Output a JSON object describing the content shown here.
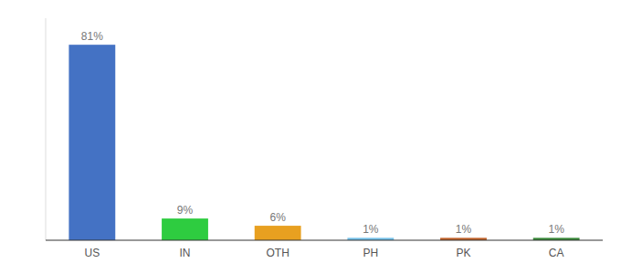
{
  "chart_data": {
    "type": "bar",
    "categories": [
      "US",
      "IN",
      "OTH",
      "PH",
      "PK",
      "CA"
    ],
    "values": [
      81,
      9,
      6,
      1,
      1,
      1
    ],
    "value_labels": [
      "81%",
      "9%",
      "6%",
      "1%",
      "1%",
      "1%"
    ],
    "colors": [
      "#4472c4",
      "#2ecc40",
      "#e8a020",
      "#74c0e8",
      "#c0622a",
      "#3a8a3a"
    ],
    "ylim": [
      0,
      92
    ],
    "data_labels": true,
    "tick_labels": "x"
  }
}
